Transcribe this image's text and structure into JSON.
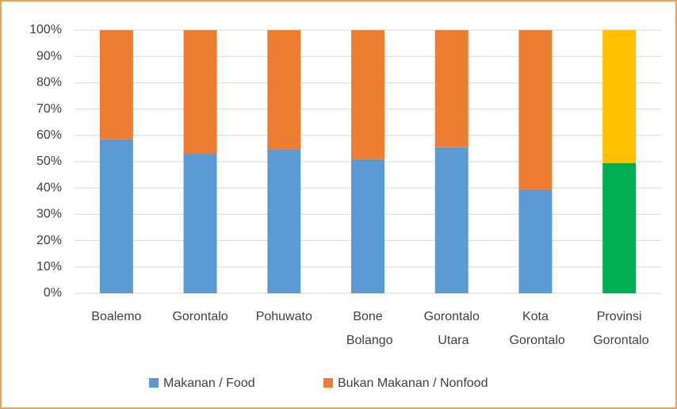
{
  "chart_data": {
    "type": "stacked_bar_100",
    "categories": [
      "Boalemo",
      "Gorontalo",
      "Pohuwato",
      "Bone Bolango",
      "Gorontalo Utara",
      "Kota Gorontalo",
      "Provinsi Gorontalo"
    ],
    "series": [
      {
        "name": "Makanan / Food",
        "color": "#5b9bd5",
        "colors": [
          "#5b9bd5",
          "#5b9bd5",
          "#5b9bd5",
          "#5b9bd5",
          "#5b9bd5",
          "#5b9bd5",
          "#00b050"
        ],
        "values": [
          58.5,
          53,
          54.7,
          51,
          55.5,
          39.5,
          49.5
        ]
      },
      {
        "name": "Bukan Makanan / Nonfood",
        "color": "#ed7d31",
        "colors": [
          "#ed7d31",
          "#ed7d31",
          "#ed7d31",
          "#ed7d31",
          "#ed7d31",
          "#ed7d31",
          "#ffc000"
        ],
        "values": [
          41.5,
          47,
          45.3,
          49,
          44.5,
          60.5,
          50.5
        ]
      }
    ],
    "ylim": [
      0,
      100
    ],
    "yticks": [
      {
        "value": 0,
        "label": "0%"
      },
      {
        "value": 10,
        "label": "10%"
      },
      {
        "value": 20,
        "label": "20%"
      },
      {
        "value": 30,
        "label": "30%"
      },
      {
        "value": 40,
        "label": "40%"
      },
      {
        "value": 50,
        "label": "50%"
      },
      {
        "value": 60,
        "label": "60%"
      },
      {
        "value": 70,
        "label": "70%"
      },
      {
        "value": 80,
        "label": "80%"
      },
      {
        "value": 90,
        "label": "90%"
      },
      {
        "value": 100,
        "label": "100%"
      }
    ],
    "grid": true,
    "legend": "bottom"
  }
}
